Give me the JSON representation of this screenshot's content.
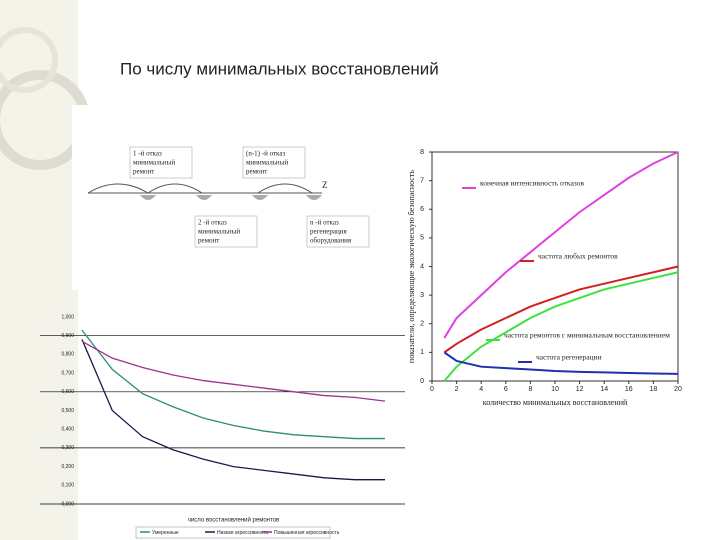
{
  "slide": {
    "title": "По числу минимальных восстановлений"
  },
  "diagram": {
    "axis_label": "Z",
    "nodes": [
      {
        "lines": [
          "1 -й отказ",
          "минимальный",
          "ремонт"
        ]
      },
      {
        "lines": [
          "(n-1) -й отказ",
          "минимальный",
          "ремонт"
        ]
      },
      {
        "lines": [
          "2 -й отказ",
          "минимальный",
          "ремонт"
        ]
      },
      {
        "lines": [
          "n -й отказ",
          "регенерация",
          "оборудования"
        ]
      }
    ]
  },
  "chart_data": [
    {
      "type": "line",
      "x_label": "число восстановлений ремонтов",
      "categories": [
        null,
        null,
        null,
        null,
        null,
        null,
        null,
        null,
        null,
        null,
        null
      ],
      "ylim": [
        0,
        1
      ],
      "yticks": [
        {
          "value": 0,
          "label": "0,000"
        },
        {
          "value": 0.1,
          "label": "0,100"
        },
        {
          "value": 0.2,
          "label": "0,200"
        },
        {
          "value": 0.3,
          "label": "0,300"
        },
        {
          "value": 0.4,
          "label": "0,400"
        },
        {
          "value": 0.5,
          "label": "0,500"
        },
        {
          "value": 0.6,
          "label": "0,600"
        },
        {
          "value": 0.7,
          "label": "0,700"
        },
        {
          "value": 0.8,
          "label": "0,800"
        },
        {
          "value": 0.9,
          "label": "0,900"
        },
        {
          "value": 1,
          "label": "1,000"
        }
      ],
      "series": [
        {
          "name": "Умеренные",
          "color": "#2e8b7a",
          "values": [
            0.93,
            0.72,
            0.59,
            0.52,
            0.46,
            0.42,
            0.39,
            0.37,
            0.36,
            0.35,
            0.35
          ]
        },
        {
          "name": "Низкая агрессивность",
          "color": "#1a1a4a",
          "values": [
            0.88,
            0.5,
            0.36,
            0.29,
            0.24,
            0.2,
            0.18,
            0.16,
            0.14,
            0.13,
            0.13
          ]
        },
        {
          "name": "Повышенная агрессивность",
          "color": "#a0308f",
          "values": [
            0.87,
            0.78,
            0.73,
            0.69,
            0.66,
            0.64,
            0.62,
            0.6,
            0.58,
            0.57,
            0.55
          ]
        }
      ]
    },
    {
      "type": "line",
      "x_label": "количество минимальных восстановлений",
      "y_label": "показатели, определяющие экологическую безопасность",
      "x": [
        1,
        2,
        4,
        6,
        8,
        10,
        12,
        14,
        16,
        18,
        20
      ],
      "xlim": [
        0,
        20
      ],
      "xticks": [
        0,
        2,
        4,
        6,
        8,
        10,
        12,
        14,
        16,
        18,
        20
      ],
      "ylim": [
        0,
        8
      ],
      "yticks": [
        0,
        1,
        2,
        3,
        4,
        5,
        6,
        7,
        8
      ],
      "series": [
        {
          "name": "конечная интенсивность отказов",
          "color": "#e040e0",
          "values": [
            1.5,
            2.2,
            3.0,
            3.8,
            4.5,
            5.2,
            5.9,
            6.5,
            7.1,
            7.6,
            8.0
          ]
        },
        {
          "name": "частота любых ремонтов",
          "color": "#d02020",
          "values": [
            1.0,
            1.3,
            1.8,
            2.2,
            2.6,
            2.9,
            3.2,
            3.4,
            3.6,
            3.8,
            4.0
          ]
        },
        {
          "name": "частота ремонтов с минимальным восстановлением",
          "color": "#40e040",
          "values": [
            0,
            0.5,
            1.2,
            1.7,
            2.2,
            2.6,
            2.9,
            3.2,
            3.4,
            3.6,
            3.8
          ]
        },
        {
          "name": "частота регенерации",
          "color": "#2030b0",
          "values": [
            1.0,
            0.7,
            0.5,
            0.45,
            0.4,
            0.35,
            0.32,
            0.3,
            0.28,
            0.26,
            0.25
          ]
        }
      ]
    }
  ]
}
